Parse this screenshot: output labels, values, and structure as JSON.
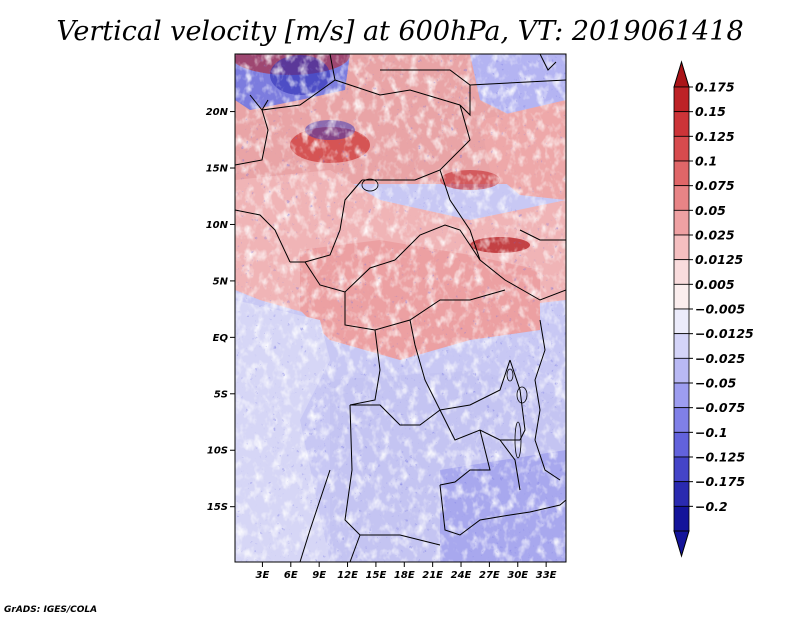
{
  "chart_data": {
    "type": "heatmap",
    "title": "Vertical velocity [m/s] at 600hPa, VT: 2019061418",
    "variable": "Vertical velocity",
    "units": "m/s",
    "level": "600hPa",
    "valid_time": "2019061418",
    "x_ticks": [
      "3E",
      "6E",
      "9E",
      "12E",
      "15E",
      "18E",
      "21E",
      "24E",
      "27E",
      "30E",
      "33E"
    ],
    "x_tick_values": [
      3,
      6,
      9,
      12,
      15,
      18,
      21,
      24,
      27,
      30,
      33
    ],
    "y_ticks": [
      "20N",
      "15N",
      "10N",
      "5N",
      "EQ",
      "5S",
      "10S",
      "15S"
    ],
    "y_tick_values": [
      20,
      15,
      10,
      5,
      0,
      -5,
      -10,
      -15
    ],
    "xlim": [
      0.1,
      35.1
    ],
    "ylim": [
      -19.9,
      25.1
    ],
    "colorbar": {
      "labels": [
        "0.175",
        "0.15",
        "0.125",
        "0.1",
        "0.075",
        "0.05",
        "0.025",
        "0.0125",
        "0.005",
        "−0.005",
        "−0.0125",
        "−0.025",
        "−0.05",
        "−0.075",
        "−0.1",
        "−0.125",
        "−0.175",
        "−0.2"
      ],
      "colors": [
        "#aa1418",
        "#bd2226",
        "#cc3438",
        "#d74b4e",
        "#e06668",
        "#e88486",
        "#efa1a3",
        "#f5bfc0",
        "#f9dcdd",
        "#fbeeee",
        "#ececfb",
        "#d4d4f8",
        "#b9b9f4",
        "#9d9df0",
        "#8080e8",
        "#6262dc",
        "#4444c8",
        "#2a2ab0",
        "#14149a"
      ]
    },
    "legend_position": "right"
  },
  "credit": "GrADS: IGES/COLA"
}
